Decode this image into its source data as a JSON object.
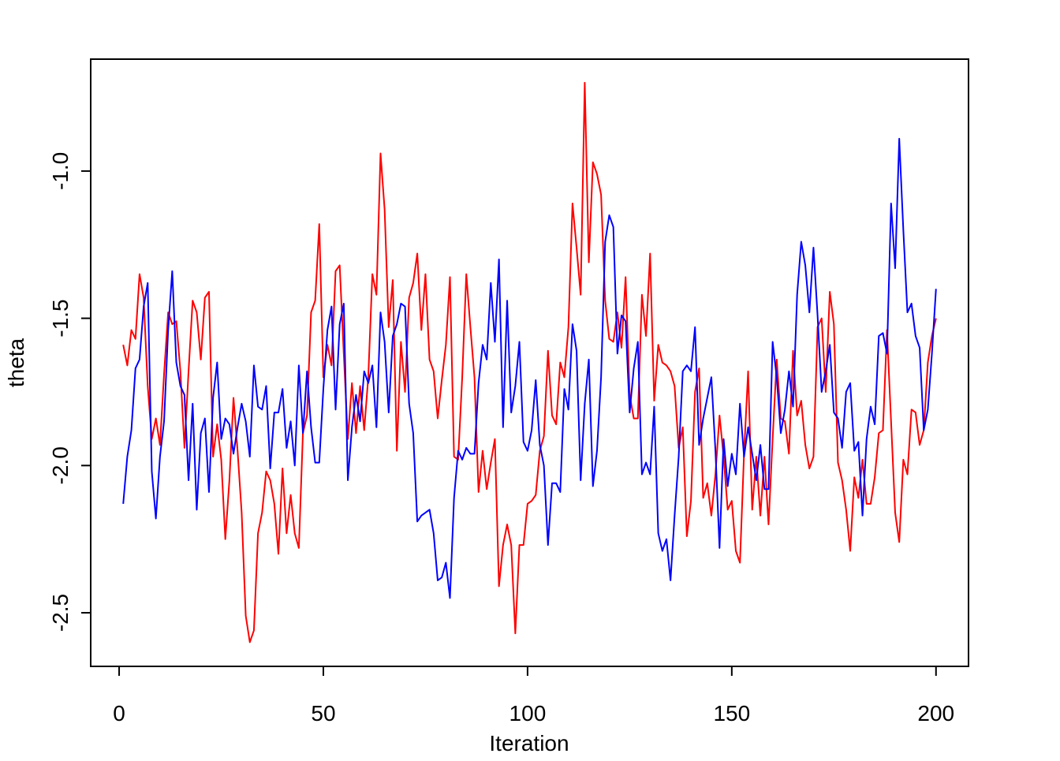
{
  "chart_data": {
    "type": "line",
    "xlabel": "Iteration",
    "ylabel": "theta",
    "x": [
      1,
      2,
      3,
      4,
      5,
      6,
      7,
      8,
      9,
      10,
      11,
      12,
      13,
      14,
      15,
      16,
      17,
      18,
      19,
      20,
      21,
      22,
      23,
      24,
      25,
      26,
      27,
      28,
      29,
      30,
      31,
      32,
      33,
      34,
      35,
      36,
      37,
      38,
      39,
      40,
      41,
      42,
      43,
      44,
      45,
      46,
      47,
      48,
      49,
      50,
      51,
      52,
      53,
      54,
      55,
      56,
      57,
      58,
      59,
      60,
      61,
      62,
      63,
      64,
      65,
      66,
      67,
      68,
      69,
      70,
      71,
      72,
      73,
      74,
      75,
      76,
      77,
      78,
      79,
      80,
      81,
      82,
      83,
      84,
      85,
      86,
      87,
      88,
      89,
      90,
      91,
      92,
      93,
      94,
      95,
      96,
      97,
      98,
      99,
      100,
      101,
      102,
      103,
      104,
      105,
      106,
      107,
      108,
      109,
      110,
      111,
      112,
      113,
      114,
      115,
      116,
      117,
      118,
      119,
      120,
      121,
      122,
      123,
      124,
      125,
      126,
      127,
      128,
      129,
      130,
      131,
      132,
      133,
      134,
      135,
      136,
      137,
      138,
      139,
      140,
      141,
      142,
      143,
      144,
      145,
      146,
      147,
      148,
      149,
      150,
      151,
      152,
      153,
      154,
      155,
      156,
      157,
      158,
      159,
      160,
      161,
      162,
      163,
      164,
      165,
      166,
      167,
      168,
      169,
      170,
      171,
      172,
      173,
      174,
      175,
      176,
      177,
      178,
      179,
      180,
      181,
      182,
      183,
      184,
      185,
      186,
      187,
      188,
      189,
      190,
      191,
      192,
      193,
      194,
      195,
      196,
      197,
      198,
      199,
      200
    ],
    "series": [
      {
        "color": "#ff0000",
        "values": [
          -1.59,
          -1.66,
          -1.54,
          -1.57,
          -1.35,
          -1.43,
          -1.73,
          -1.91,
          -1.84,
          -1.93,
          -1.69,
          -1.48,
          -1.52,
          -1.51,
          -1.68,
          -1.94,
          -1.68,
          -1.44,
          -1.48,
          -1.64,
          -1.43,
          -1.41,
          -1.97,
          -1.86,
          -1.98,
          -2.25,
          -2.05,
          -1.77,
          -1.95,
          -2.16,
          -2.51,
          -2.6,
          -2.56,
          -2.23,
          -2.16,
          -2.02,
          -2.05,
          -2.13,
          -2.3,
          -2.01,
          -2.23,
          -2.1,
          -2.23,
          -2.28,
          -1.89,
          -1.83,
          -1.48,
          -1.44,
          -1.18,
          -1.7,
          -1.59,
          -1.66,
          -1.34,
          -1.32,
          -1.62,
          -1.91,
          -1.72,
          -1.89,
          -1.73,
          -1.88,
          -1.7,
          -1.35,
          -1.42,
          -0.94,
          -1.13,
          -1.53,
          -1.37,
          -1.95,
          -1.58,
          -1.75,
          -1.43,
          -1.38,
          -1.28,
          -1.54,
          -1.35,
          -1.64,
          -1.68,
          -1.84,
          -1.71,
          -1.59,
          -1.36,
          -1.97,
          -1.98,
          -1.7,
          -1.35,
          -1.53,
          -1.7,
          -2.09,
          -1.95,
          -2.08,
          -1.99,
          -1.91,
          -2.41,
          -2.27,
          -2.2,
          -2.27,
          -2.57,
          -2.27,
          -2.27,
          -2.13,
          -2.12,
          -2.1,
          -1.95,
          -1.9,
          -1.61,
          -1.83,
          -1.86,
          -1.65,
          -1.7,
          -1.53,
          -1.11,
          -1.26,
          -1.42,
          -0.7,
          -1.31,
          -0.97,
          -1.01,
          -1.08,
          -1.44,
          -1.57,
          -1.58,
          -1.48,
          -1.6,
          -1.36,
          -1.76,
          -1.84,
          -1.84,
          -1.42,
          -1.56,
          -1.28,
          -1.78,
          -1.59,
          -1.65,
          -1.66,
          -1.68,
          -1.73,
          -1.94,
          -1.87,
          -2.24,
          -2.12,
          -1.75,
          -1.67,
          -2.11,
          -2.06,
          -2.17,
          -2.03,
          -1.83,
          -1.97,
          -2.15,
          -2.12,
          -2.29,
          -2.33,
          -1.96,
          -1.68,
          -2.15,
          -1.97,
          -2.17,
          -1.97,
          -2.2,
          -1.91,
          -1.64,
          -1.84,
          -1.85,
          -1.96,
          -1.61,
          -1.83,
          -1.78,
          -1.93,
          -2.01,
          -1.97,
          -1.53,
          -1.5,
          -1.75,
          -1.41,
          -1.52,
          -1.99,
          -2.05,
          -2.15,
          -2.29,
          -2.04,
          -2.11,
          -1.98,
          -2.13,
          -2.13,
          -2.04,
          -1.89,
          -1.88,
          -1.54,
          -1.85,
          -2.16,
          -2.26,
          -1.98,
          -2.03,
          -1.81,
          -1.82,
          -1.93,
          -1.88,
          -1.65,
          -1.56,
          -1.5
        ]
      },
      {
        "color": "#0000ff",
        "values": [
          -2.13,
          -1.97,
          -1.88,
          -1.67,
          -1.64,
          -1.46,
          -1.38,
          -2.02,
          -2.18,
          -1.97,
          -1.85,
          -1.54,
          -1.34,
          -1.65,
          -1.73,
          -1.76,
          -2.05,
          -1.79,
          -2.15,
          -1.89,
          -1.84,
          -2.09,
          -1.77,
          -1.65,
          -1.91,
          -1.84,
          -1.86,
          -1.96,
          -1.87,
          -1.79,
          -1.85,
          -1.97,
          -1.66,
          -1.8,
          -1.81,
          -1.73,
          -2.01,
          -1.82,
          -1.82,
          -1.74,
          -1.94,
          -1.85,
          -2.0,
          -1.66,
          -1.89,
          -1.68,
          -1.87,
          -1.99,
          -1.99,
          -1.74,
          -1.54,
          -1.46,
          -1.81,
          -1.52,
          -1.45,
          -2.05,
          -1.87,
          -1.76,
          -1.85,
          -1.68,
          -1.72,
          -1.66,
          -1.87,
          -1.48,
          -1.58,
          -1.82,
          -1.56,
          -1.52,
          -1.45,
          -1.46,
          -1.79,
          -1.89,
          -2.19,
          -2.17,
          -2.16,
          -2.15,
          -2.23,
          -2.39,
          -2.38,
          -2.33,
          -2.45,
          -2.11,
          -1.95,
          -1.98,
          -1.94,
          -1.96,
          -1.96,
          -1.72,
          -1.59,
          -1.64,
          -1.38,
          -1.58,
          -1.3,
          -1.87,
          -1.44,
          -1.82,
          -1.73,
          -1.58,
          -1.92,
          -1.95,
          -1.88,
          -1.71,
          -1.93,
          -2.0,
          -2.27,
          -2.06,
          -2.06,
          -2.09,
          -1.74,
          -1.81,
          -1.52,
          -1.61,
          -2.05,
          -1.79,
          -1.64,
          -2.07,
          -1.95,
          -1.7,
          -1.24,
          -1.15,
          -1.19,
          -1.62,
          -1.49,
          -1.51,
          -1.82,
          -1.67,
          -1.58,
          -2.03,
          -1.99,
          -2.03,
          -1.8,
          -2.23,
          -2.29,
          -2.25,
          -2.39,
          -2.17,
          -1.97,
          -1.68,
          -1.66,
          -1.68,
          -1.53,
          -1.93,
          -1.84,
          -1.77,
          -1.7,
          -1.95,
          -2.28,
          -1.91,
          -2.07,
          -1.96,
          -2.03,
          -1.79,
          -1.97,
          -1.87,
          -1.96,
          -2.05,
          -1.93,
          -2.08,
          -2.08,
          -1.58,
          -1.7,
          -1.89,
          -1.81,
          -1.68,
          -1.8,
          -1.42,
          -1.24,
          -1.32,
          -1.48,
          -1.26,
          -1.49,
          -1.75,
          -1.68,
          -1.59,
          -1.82,
          -1.84,
          -1.94,
          -1.75,
          -1.72,
          -1.95,
          -1.92,
          -2.17,
          -1.91,
          -1.8,
          -1.86,
          -1.56,
          -1.55,
          -1.62,
          -1.11,
          -1.33,
          -0.89,
          -1.2,
          -1.48,
          -1.45,
          -1.56,
          -1.6,
          -1.88,
          -1.81,
          -1.62,
          -1.4
        ]
      }
    ],
    "xlim": [
      -6.96,
      207.96
    ],
    "xticks": [
      0,
      50,
      100,
      150,
      200
    ],
    "ylim": [
      -2.682,
      -0.62
    ],
    "yticks": [
      -2.5,
      {
        "value": -2,
        "label": "-2.0"
      },
      -1.5,
      {
        "value": -1,
        "label": "-1.0"
      }
    ]
  }
}
